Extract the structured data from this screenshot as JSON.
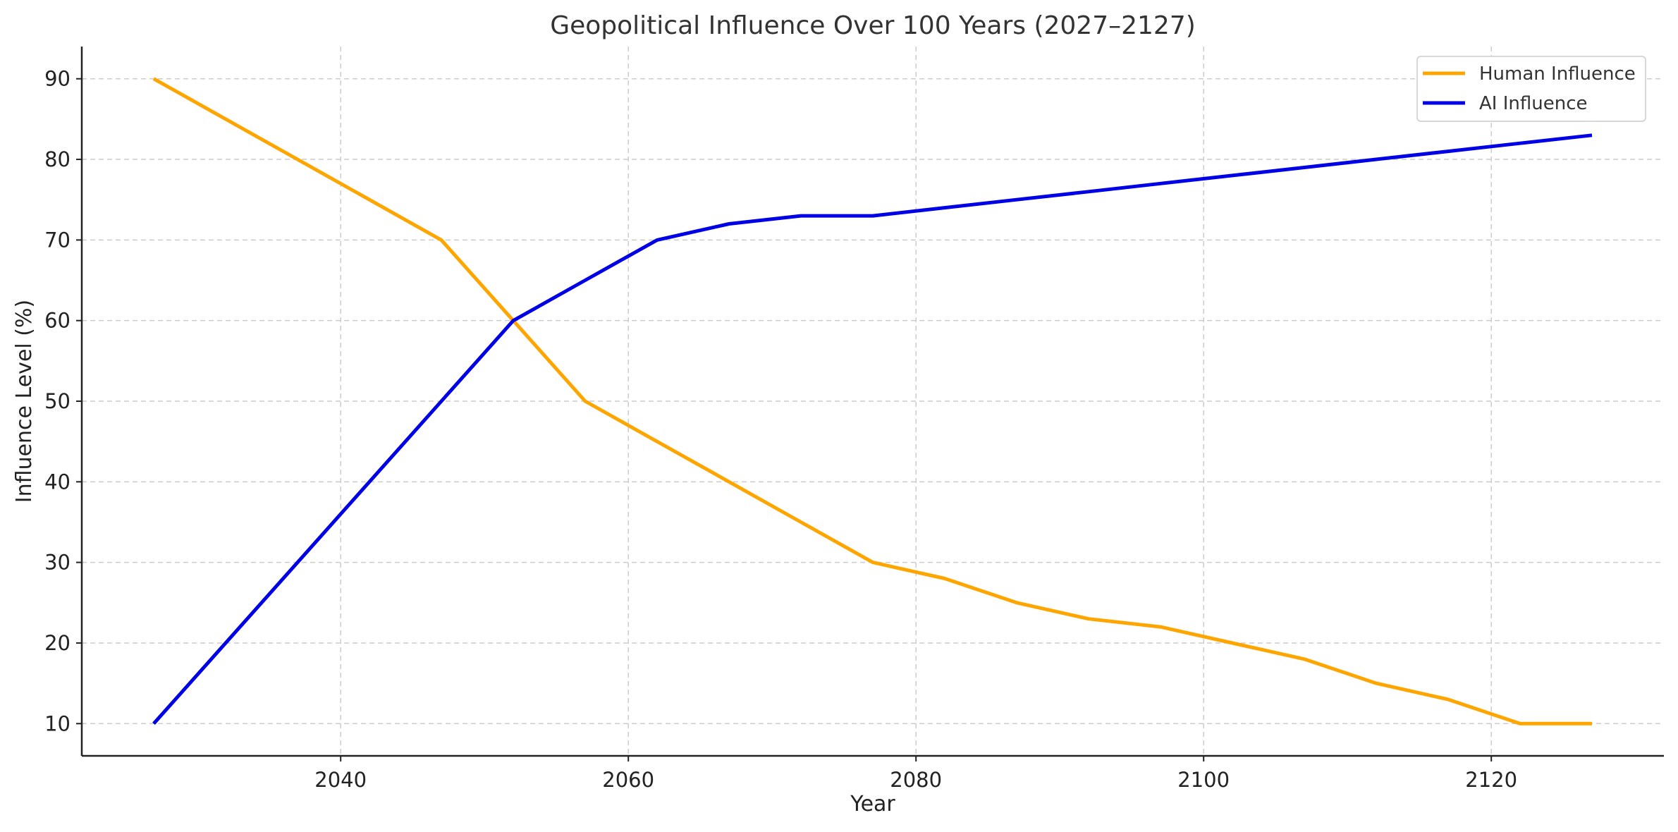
{
  "chart_data": {
    "type": "line",
    "title": "Geopolitical Influence Over 100 Years (2027–2127)",
    "xlabel": "Year",
    "ylabel": "Influence Level (%)",
    "xlim": [
      2022,
      2132
    ],
    "ylim": [
      6,
      94
    ],
    "xticks": [
      2040,
      2060,
      2080,
      2100,
      2120
    ],
    "yticks": [
      10,
      20,
      30,
      40,
      50,
      60,
      70,
      80,
      90
    ],
    "grid": true,
    "legend_position": "top-right",
    "series": [
      {
        "name": "Human Influence",
        "color": "#FFA500",
        "points": [
          [
            2027,
            90
          ],
          [
            2047,
            70
          ],
          [
            2052,
            60
          ],
          [
            2057,
            50
          ],
          [
            2062,
            45
          ],
          [
            2067,
            40
          ],
          [
            2072,
            35
          ],
          [
            2077,
            30
          ],
          [
            2082,
            28
          ],
          [
            2087,
            25
          ],
          [
            2092,
            23
          ],
          [
            2097,
            22
          ],
          [
            2102,
            20
          ],
          [
            2107,
            18
          ],
          [
            2112,
            15
          ],
          [
            2117,
            13
          ],
          [
            2122,
            10
          ],
          [
            2127,
            10
          ]
        ]
      },
      {
        "name": "AI Influence",
        "color": "#0000E6",
        "points": [
          [
            2027,
            10
          ],
          [
            2047,
            50
          ],
          [
            2052,
            60
          ],
          [
            2057,
            65
          ],
          [
            2062,
            70
          ],
          [
            2067,
            72
          ],
          [
            2072,
            73
          ],
          [
            2077,
            73
          ],
          [
            2082,
            74
          ],
          [
            2087,
            75
          ],
          [
            2092,
            76
          ],
          [
            2097,
            77
          ],
          [
            2102,
            78
          ],
          [
            2107,
            79
          ],
          [
            2112,
            80
          ],
          [
            2117,
            81
          ],
          [
            2122,
            82
          ],
          [
            2127,
            83
          ]
        ]
      }
    ]
  }
}
